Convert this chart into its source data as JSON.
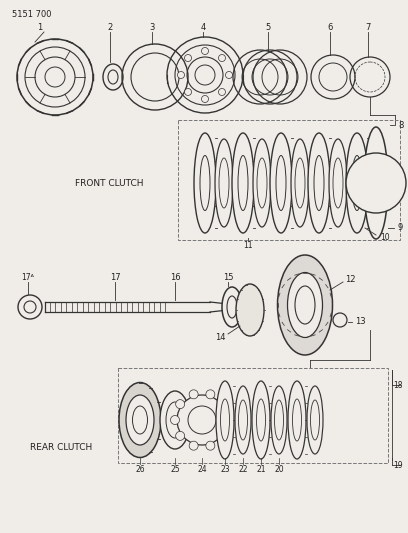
{
  "title": "5151 700",
  "bg": "#f0ede8",
  "lc": "#333333",
  "tc": "#222222",
  "front_clutch_label": "FRONT CLUTCH",
  "rear_clutch_label": "REAR CLUTCH"
}
